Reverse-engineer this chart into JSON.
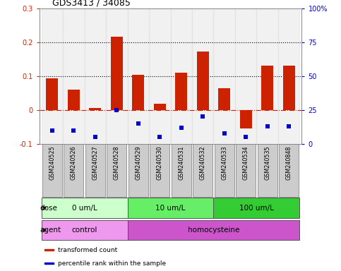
{
  "title": "GDS3413 / 34085",
  "samples": [
    "GSM240525",
    "GSM240526",
    "GSM240527",
    "GSM240528",
    "GSM240529",
    "GSM240530",
    "GSM240531",
    "GSM240532",
    "GSM240533",
    "GSM240534",
    "GSM240535",
    "GSM240848"
  ],
  "red_values": [
    0.093,
    0.06,
    0.005,
    0.215,
    0.104,
    0.018,
    0.11,
    0.172,
    0.065,
    -0.055,
    0.13,
    0.13
  ],
  "blue_percentiles": [
    10,
    10,
    5,
    25,
    15,
    5,
    12,
    20,
    8,
    5,
    13,
    13
  ],
  "red_color": "#cc2200",
  "blue_color": "#0000cc",
  "ylim_left": [
    -0.1,
    0.3
  ],
  "ylim_right": [
    0,
    100
  ],
  "yticks_left": [
    -0.1,
    0.0,
    0.1,
    0.2,
    0.3
  ],
  "ytick_labels_left": [
    "-0.1",
    "0",
    "0.1",
    "0.2",
    "0.3"
  ],
  "yticks_right": [
    0,
    25,
    50,
    75,
    100
  ],
  "ytick_labels_right": [
    "0",
    "25",
    "50",
    "75",
    "100%"
  ],
  "hlines": [
    0.1,
    0.2
  ],
  "dose_groups": [
    {
      "label": "0 um/L",
      "start": 0,
      "end": 4,
      "color": "#ccffcc"
    },
    {
      "label": "10 um/L",
      "start": 4,
      "end": 8,
      "color": "#66ee66"
    },
    {
      "label": "100 um/L",
      "start": 8,
      "end": 12,
      "color": "#33cc33"
    }
  ],
  "agent_colors": [
    "#ee99ee",
    "#cc55cc"
  ],
  "agent_groups": [
    {
      "label": "control",
      "start": 0,
      "end": 4
    },
    {
      "label": "homocysteine",
      "start": 4,
      "end": 12
    }
  ],
  "legend_red": "transformed count",
  "legend_blue": "percentile rank within the sample",
  "bar_width": 0.55,
  "sample_box_color": "#cccccc",
  "sample_box_edge": "#888888"
}
